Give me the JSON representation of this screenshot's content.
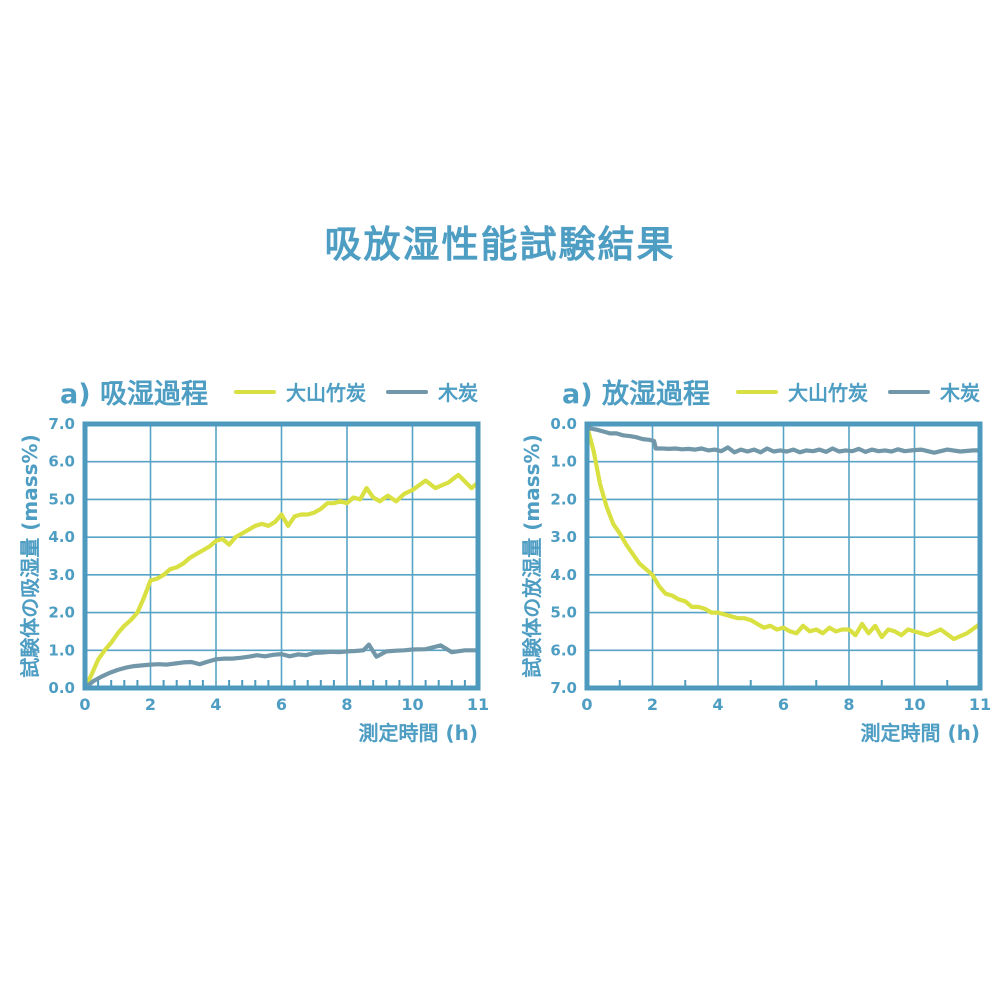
{
  "page": {
    "title": "吸放湿性能試験結果"
  },
  "colors": {
    "teal": "#4E9DC3",
    "frame": "#4E9ABF",
    "grid": "#57A3C6",
    "yellow": "#D9E041",
    "blue_gray": "#7197A9"
  },
  "chart_data": [
    {
      "type": "line",
      "title": "a) 吸湿過程",
      "xlabel": "測定時間 (h)",
      "ylabel": "試験体の吸湿量 (mass%)",
      "x_tick_labels": [
        "0",
        "2",
        "4",
        "6",
        "8",
        "10",
        "11"
      ],
      "y_tick_labels": [
        "7.0",
        "6.0",
        "5.0",
        "4.0",
        "3.0",
        "2.0",
        "1.0",
        "0.0"
      ],
      "ylim": [
        0,
        7
      ],
      "y_inverted": false,
      "grid": true,
      "minor_ticks_per_interval": 4,
      "axis_layout_hint": "x tick positions evenly spaced, including final 10-to-11 interval",
      "legend": [
        {
          "label": "大山竹炭",
          "color_key": "yellow"
        },
        {
          "label": "木炭",
          "color_key": "blue_gray"
        }
      ],
      "series": [
        {
          "name": "大山竹炭",
          "color_key": "yellow",
          "points": [
            [
              0,
              0
            ],
            [
              0.2,
              0.35
            ],
            [
              0.4,
              0.75
            ],
            [
              0.6,
              1.0
            ],
            [
              0.8,
              1.2
            ],
            [
              1,
              1.45
            ],
            [
              1.2,
              1.65
            ],
            [
              1.4,
              1.8
            ],
            [
              1.6,
              2.0
            ],
            [
              1.8,
              2.4
            ],
            [
              2,
              2.85
            ],
            [
              2.2,
              2.9
            ],
            [
              2.4,
              3.0
            ],
            [
              2.6,
              3.15
            ],
            [
              2.8,
              3.2
            ],
            [
              3,
              3.3
            ],
            [
              3.2,
              3.45
            ],
            [
              3.4,
              3.55
            ],
            [
              3.6,
              3.65
            ],
            [
              3.8,
              3.75
            ],
            [
              4,
              3.9
            ],
            [
              4.2,
              3.95
            ],
            [
              4.4,
              3.8
            ],
            [
              4.6,
              4.0
            ],
            [
              4.8,
              4.1
            ],
            [
              5,
              4.2
            ],
            [
              5.2,
              4.3
            ],
            [
              5.4,
              4.35
            ],
            [
              5.6,
              4.3
            ],
            [
              5.8,
              4.4
            ],
            [
              6,
              4.6
            ],
            [
              6.2,
              4.3
            ],
            [
              6.4,
              4.55
            ],
            [
              6.6,
              4.6
            ],
            [
              6.8,
              4.6
            ],
            [
              7,
              4.65
            ],
            [
              7.2,
              4.75
            ],
            [
              7.4,
              4.9
            ],
            [
              7.6,
              4.9
            ],
            [
              7.8,
              4.95
            ],
            [
              8,
              4.9
            ],
            [
              8.2,
              5.05
            ],
            [
              8.4,
              5.0
            ],
            [
              8.6,
              5.3
            ],
            [
              8.8,
              5.05
            ],
            [
              9,
              4.95
            ],
            [
              9.25,
              5.1
            ],
            [
              9.5,
              4.95
            ],
            [
              9.75,
              5.15
            ],
            [
              10,
              5.25
            ],
            [
              10.2,
              5.5
            ],
            [
              10.35,
              5.3
            ],
            [
              10.55,
              5.45
            ],
            [
              10.7,
              5.65
            ],
            [
              10.9,
              5.3
            ],
            [
              11,
              5.45
            ]
          ]
        },
        {
          "name": "木炭",
          "color_key": "blue_gray",
          "points": [
            [
              0,
              0
            ],
            [
              0.25,
              0.18
            ],
            [
              0.5,
              0.3
            ],
            [
              0.75,
              0.4
            ],
            [
              1,
              0.48
            ],
            [
              1.25,
              0.54
            ],
            [
              1.5,
              0.58
            ],
            [
              1.75,
              0.6
            ],
            [
              2,
              0.62
            ],
            [
              2.25,
              0.63
            ],
            [
              2.5,
              0.62
            ],
            [
              2.75,
              0.65
            ],
            [
              3,
              0.68
            ],
            [
              3.25,
              0.69
            ],
            [
              3.5,
              0.63
            ],
            [
              3.75,
              0.7
            ],
            [
              4,
              0.76
            ],
            [
              4.25,
              0.78
            ],
            [
              4.5,
              0.78
            ],
            [
              4.75,
              0.8
            ],
            [
              5,
              0.83
            ],
            [
              5.25,
              0.87
            ],
            [
              5.5,
              0.84
            ],
            [
              5.75,
              0.88
            ],
            [
              6,
              0.9
            ],
            [
              6.25,
              0.84
            ],
            [
              6.5,
              0.89
            ],
            [
              6.75,
              0.87
            ],
            [
              7,
              0.93
            ],
            [
              7.25,
              0.94
            ],
            [
              7.5,
              0.96
            ],
            [
              7.75,
              0.95
            ],
            [
              8,
              0.97
            ],
            [
              8.25,
              0.98
            ],
            [
              8.5,
              1.0
            ],
            [
              8.67,
              1.15
            ],
            [
              8.9,
              0.83
            ],
            [
              9.2,
              0.97
            ],
            [
              9.5,
              0.99
            ],
            [
              9.75,
              1.0
            ],
            [
              10,
              1.02
            ],
            [
              10.2,
              1.03
            ],
            [
              10.43,
              1.13
            ],
            [
              10.6,
              0.95
            ],
            [
              10.8,
              1.0
            ],
            [
              11,
              1.0
            ]
          ]
        }
      ]
    },
    {
      "type": "line",
      "title": "a) 放湿過程",
      "xlabel": "測定時間 (h)",
      "ylabel": "試験体の放湿量 (mass%)",
      "x_tick_labels": [
        "0",
        "2",
        "4",
        "6",
        "8",
        "10",
        "11"
      ],
      "y_tick_labels": [
        "0.0",
        "1.0",
        "2.0",
        "3.0",
        "4.0",
        "5.0",
        "6.0",
        "7.0"
      ],
      "ylim": [
        0,
        7
      ],
      "y_inverted": true,
      "grid": true,
      "minor_ticks_per_interval": 1,
      "axis_layout_hint": "x tick positions evenly spaced, including final 10-to-11 interval",
      "legend": [
        {
          "label": "大山竹炭",
          "color_key": "yellow"
        },
        {
          "label": "木炭",
          "color_key": "blue_gray"
        }
      ],
      "series": [
        {
          "name": "大山竹炭",
          "color_key": "yellow",
          "points": [
            [
              0,
              0.05
            ],
            [
              0.2,
              0.7
            ],
            [
              0.4,
              1.6
            ],
            [
              0.6,
              2.2
            ],
            [
              0.8,
              2.65
            ],
            [
              1,
              2.9
            ],
            [
              1.2,
              3.2
            ],
            [
              1.4,
              3.45
            ],
            [
              1.6,
              3.7
            ],
            [
              1.8,
              3.85
            ],
            [
              2,
              4.0
            ],
            [
              2.2,
              4.3
            ],
            [
              2.4,
              4.5
            ],
            [
              2.6,
              4.55
            ],
            [
              2.8,
              4.65
            ],
            [
              3,
              4.7
            ],
            [
              3.2,
              4.85
            ],
            [
              3.4,
              4.85
            ],
            [
              3.6,
              4.9
            ],
            [
              3.8,
              5.0
            ],
            [
              4,
              5.0
            ],
            [
              4.2,
              5.05
            ],
            [
              4.4,
              5.1
            ],
            [
              4.6,
              5.15
            ],
            [
              4.8,
              5.15
            ],
            [
              5,
              5.2
            ],
            [
              5.2,
              5.3
            ],
            [
              5.4,
              5.4
            ],
            [
              5.6,
              5.35
            ],
            [
              5.8,
              5.45
            ],
            [
              6,
              5.4
            ],
            [
              6.2,
              5.5
            ],
            [
              6.4,
              5.55
            ],
            [
              6.6,
              5.35
            ],
            [
              6.8,
              5.5
            ],
            [
              7,
              5.45
            ],
            [
              7.2,
              5.55
            ],
            [
              7.4,
              5.4
            ],
            [
              7.6,
              5.5
            ],
            [
              7.8,
              5.45
            ],
            [
              8,
              5.45
            ],
            [
              8.2,
              5.6
            ],
            [
              8.4,
              5.3
            ],
            [
              8.6,
              5.55
            ],
            [
              8.8,
              5.35
            ],
            [
              9,
              5.65
            ],
            [
              9.2,
              5.45
            ],
            [
              9.4,
              5.5
            ],
            [
              9.6,
              5.6
            ],
            [
              9.8,
              5.45
            ],
            [
              10,
              5.5
            ],
            [
              10.2,
              5.6
            ],
            [
              10.4,
              5.45
            ],
            [
              10.6,
              5.7
            ],
            [
              10.8,
              5.55
            ],
            [
              11,
              5.3
            ]
          ]
        },
        {
          "name": "木炭",
          "color_key": "blue_gray",
          "points": [
            [
              0,
              0.1
            ],
            [
              0.3,
              0.15
            ],
            [
              0.5,
              0.2
            ],
            [
              0.7,
              0.25
            ],
            [
              0.9,
              0.25
            ],
            [
              1.1,
              0.3
            ],
            [
              1.3,
              0.32
            ],
            [
              1.5,
              0.35
            ],
            [
              1.7,
              0.4
            ],
            [
              1.9,
              0.42
            ],
            [
              2.05,
              0.45
            ],
            [
              2.1,
              0.65
            ],
            [
              2.3,
              0.65
            ],
            [
              2.5,
              0.66
            ],
            [
              2.7,
              0.65
            ],
            [
              2.9,
              0.67
            ],
            [
              3.1,
              0.66
            ],
            [
              3.3,
              0.68
            ],
            [
              3.5,
              0.65
            ],
            [
              3.7,
              0.7
            ],
            [
              3.9,
              0.68
            ],
            [
              4.1,
              0.72
            ],
            [
              4.3,
              0.62
            ],
            [
              4.5,
              0.75
            ],
            [
              4.7,
              0.68
            ],
            [
              4.9,
              0.73
            ],
            [
              5.1,
              0.68
            ],
            [
              5.3,
              0.75
            ],
            [
              5.5,
              0.65
            ],
            [
              5.7,
              0.73
            ],
            [
              5.9,
              0.7
            ],
            [
              6.1,
              0.73
            ],
            [
              6.3,
              0.68
            ],
            [
              6.5,
              0.75
            ],
            [
              6.7,
              0.7
            ],
            [
              6.9,
              0.72
            ],
            [
              7.1,
              0.68
            ],
            [
              7.3,
              0.74
            ],
            [
              7.5,
              0.65
            ],
            [
              7.7,
              0.73
            ],
            [
              7.9,
              0.7
            ],
            [
              8.1,
              0.72
            ],
            [
              8.3,
              0.66
            ],
            [
              8.5,
              0.74
            ],
            [
              8.7,
              0.68
            ],
            [
              8.9,
              0.72
            ],
            [
              9.1,
              0.7
            ],
            [
              9.3,
              0.73
            ],
            [
              9.5,
              0.67
            ],
            [
              9.7,
              0.72
            ],
            [
              9.9,
              0.7
            ],
            [
              10.1,
              0.68
            ],
            [
              10.3,
              0.76
            ],
            [
              10.5,
              0.68
            ],
            [
              10.7,
              0.73
            ],
            [
              10.9,
              0.7
            ],
            [
              11,
              0.7
            ]
          ]
        }
      ]
    }
  ]
}
